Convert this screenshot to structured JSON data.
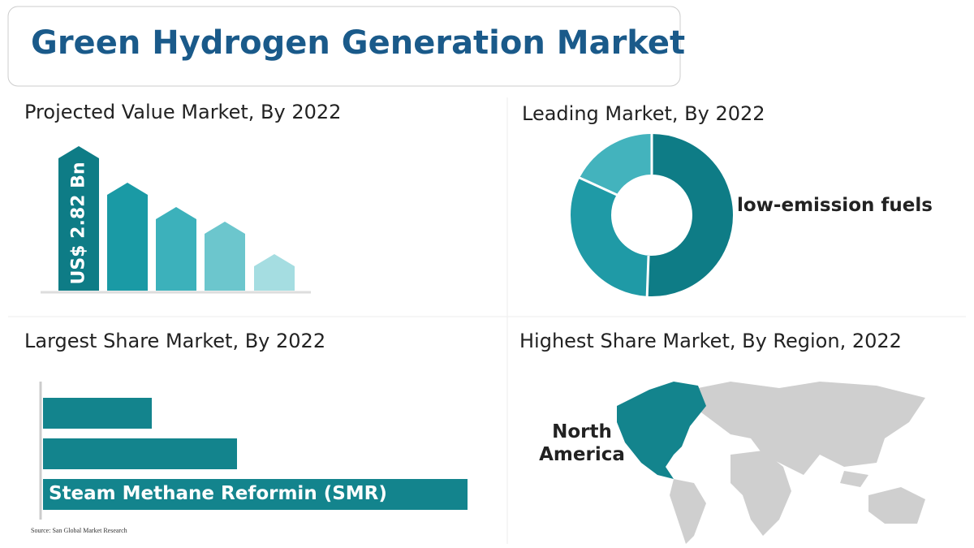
{
  "header": {
    "title": "Green Hydrogen Generation Market"
  },
  "panels": [
    {
      "title": "Projected Value Market, By 2022",
      "label": "US$ 2.82 Bn"
    },
    {
      "title": "Leading Market, By 2022",
      "label": "low-emission fuels"
    },
    {
      "title": "Largest Share Market, By 2022",
      "label": "Steam Methane Reformin (SMR)"
    },
    {
      "title": "Highest Share Market, By Region, 2022",
      "label": "North America"
    }
  ],
  "source": "Source: San Global Market Research"
}
